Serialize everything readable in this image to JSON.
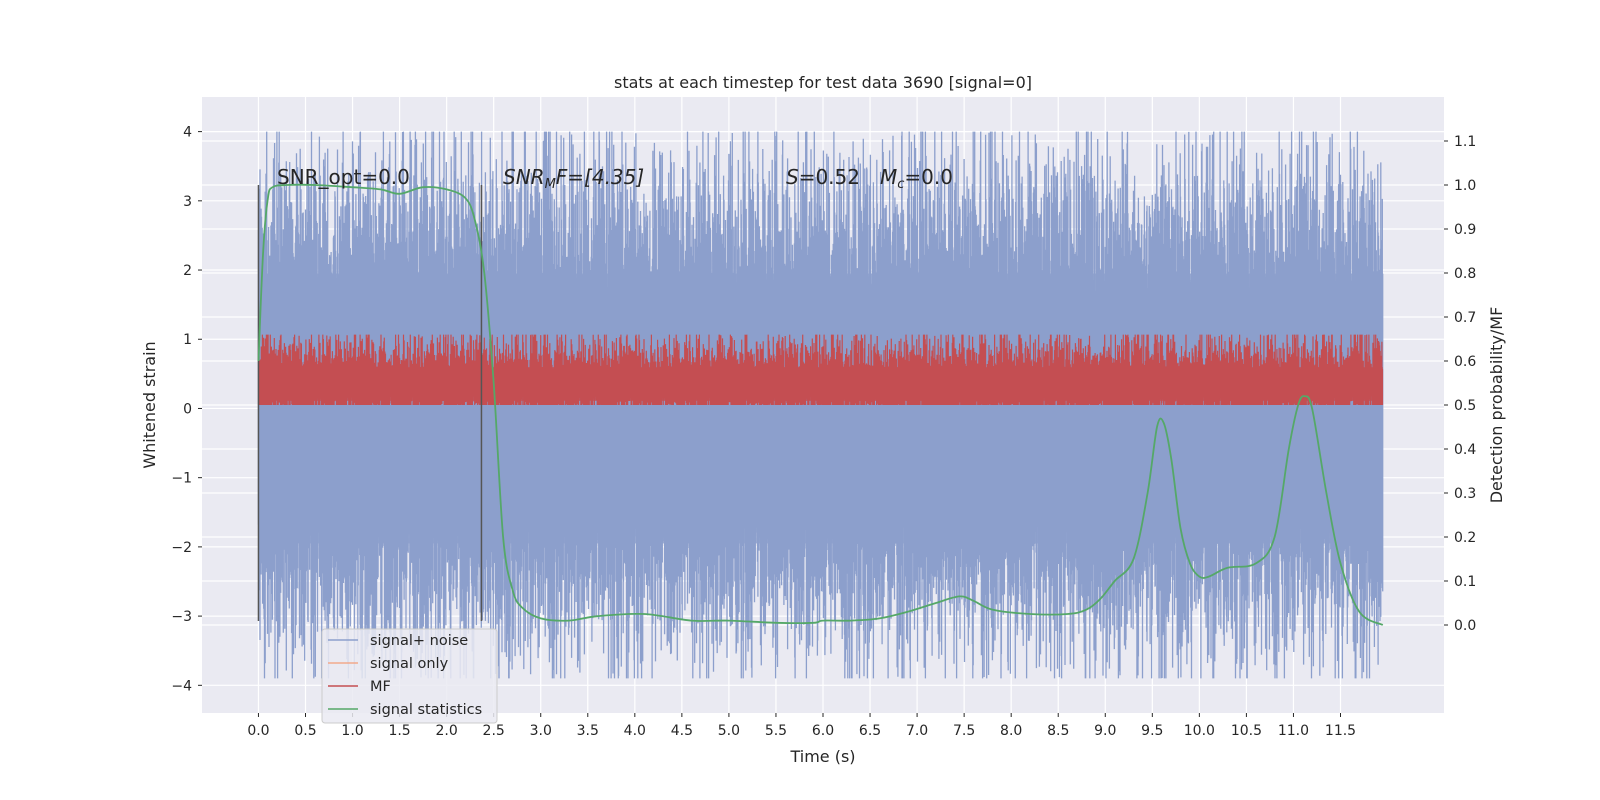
{
  "chart_data": {
    "type": "line",
    "title": "stats at each timestep for test data 3690 [signal=0]",
    "xlabel": "Time (s)",
    "ylabel_left": "Whitened strain",
    "ylabel_right": "Detection probability/MF",
    "xlim": [
      -0.6,
      12.6
    ],
    "ylim_left": [
      -4.4,
      4.5
    ],
    "ylim_right": [
      -0.2,
      1.2
    ],
    "grid": true,
    "x_ticks": [
      0.0,
      0.5,
      1.0,
      1.5,
      2.0,
      2.5,
      3.0,
      3.5,
      4.0,
      4.5,
      5.0,
      5.5,
      6.0,
      6.5,
      7.0,
      7.5,
      8.0,
      8.5,
      9.0,
      9.5,
      10.0,
      10.5,
      11.0,
      11.5
    ],
    "x_tick_labels": [
      "0.0",
      "0.5",
      "1.0",
      "1.5",
      "2.0",
      "2.5",
      "3.0",
      "3.5",
      "4.0",
      "4.5",
      "5.0",
      "5.5",
      "6.0",
      "6.5",
      "7.0",
      "7.5",
      "8.0",
      "8.5",
      "9.0",
      "9.5",
      "10.0",
      "10.5",
      "11.0",
      "11.5"
    ],
    "y_left_ticks": [
      4,
      3,
      2,
      1,
      0,
      -1,
      -2,
      -3,
      -4
    ],
    "y_left_tick_labels": [
      "4",
      "3",
      "2",
      "1",
      "0",
      "−1",
      "−2",
      "−3",
      "−4"
    ],
    "y_right_ticks": [
      1.1,
      1.0,
      0.9,
      0.8,
      0.7,
      0.6,
      0.5,
      0.4,
      0.3,
      0.2,
      0.1,
      0.0
    ],
    "y_right_tick_labels": [
      "1.1",
      "1.0",
      "0.9",
      "0.8",
      "0.7",
      "0.6",
      "0.5",
      "0.4",
      "0.3",
      "0.2",
      "0.1",
      "0.0"
    ],
    "annotations": {
      "snr_opt": "SNR_opt=0.0",
      "snr_mf_prefix": "SNR",
      "snr_mf_sub": "M",
      "snr_mf_suffix": "F=[4.35]",
      "s_var": "S",
      "s_value": "=0.52",
      "mc_var": "M",
      "mc_sub": "c",
      "mc_value": "=0.0"
    },
    "vertical_markers": [
      0.0,
      2.37
    ],
    "legend": {
      "placement": "lower-left",
      "entries": [
        "signal+ noise",
        "signal only",
        "MF",
        "signal statistics"
      ]
    },
    "series": [
      {
        "name": "signal+ noise",
        "color": "#8c9fcc",
        "axis": "left",
        "x_range": [
          0.0,
          11.95
        ],
        "description": "whitened noisy strain, roughly within ±2 with spikes to about ±4"
      },
      {
        "name": "signal only",
        "color": "#f2a98b",
        "axis": "left",
        "values_note": "flat at zero (signal=0)"
      },
      {
        "name": "MF",
        "color": "#c44e52",
        "axis": "right",
        "x_range": [
          0.0,
          11.95
        ],
        "level": 0.55,
        "spread": 0.045
      },
      {
        "name": "signal statistics",
        "color": "#55a868",
        "axis": "right",
        "x": [
          0.0,
          0.05,
          0.1,
          0.15,
          0.3,
          0.6,
          1.0,
          1.3,
          1.5,
          1.75,
          2.0,
          2.2,
          2.3,
          2.4,
          2.5,
          2.6,
          2.7,
          2.8,
          3.0,
          3.3,
          3.6,
          4.1,
          4.6,
          5.0,
          5.5,
          5.9,
          6.0,
          6.3,
          6.6,
          6.9,
          7.2,
          7.45,
          7.6,
          7.8,
          8.2,
          8.6,
          8.8,
          8.95,
          9.1,
          9.3,
          9.45,
          9.55,
          9.62,
          9.7,
          9.8,
          9.9,
          10.0,
          10.1,
          10.3,
          10.6,
          10.8,
          10.95,
          11.05,
          11.12,
          11.2,
          11.35,
          11.5,
          11.7,
          11.95
        ],
        "values": [
          0.6,
          0.85,
          0.97,
          0.995,
          1.0,
          1.0,
          0.995,
          0.99,
          0.98,
          0.995,
          0.99,
          0.97,
          0.92,
          0.8,
          0.55,
          0.2,
          0.08,
          0.04,
          0.015,
          0.01,
          0.02,
          0.025,
          0.01,
          0.01,
          0.005,
          0.005,
          0.01,
          0.01,
          0.015,
          0.03,
          0.05,
          0.065,
          0.055,
          0.035,
          0.025,
          0.025,
          0.035,
          0.06,
          0.1,
          0.15,
          0.3,
          0.45,
          0.46,
          0.38,
          0.22,
          0.14,
          0.11,
          0.11,
          0.13,
          0.14,
          0.2,
          0.4,
          0.5,
          0.52,
          0.49,
          0.3,
          0.14,
          0.03,
          0.0
        ]
      }
    ]
  }
}
